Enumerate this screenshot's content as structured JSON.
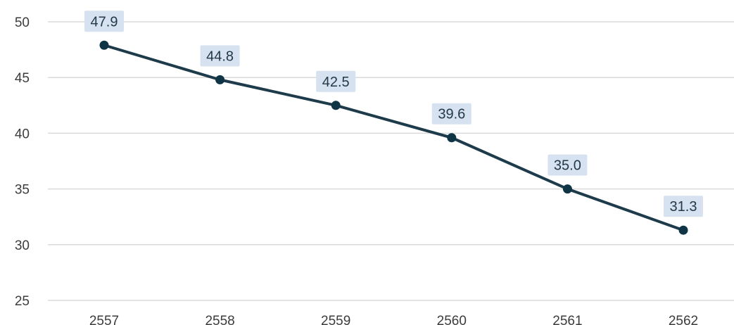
{
  "chart_data": {
    "type": "line",
    "categories": [
      "2557",
      "2558",
      "2559",
      "2560",
      "2561",
      "2562"
    ],
    "values": [
      47.9,
      44.8,
      42.5,
      39.6,
      35.0,
      31.3
    ],
    "data_labels": [
      "47.9",
      "44.8",
      "42.5",
      "39.6",
      "35.0",
      "31.3"
    ],
    "y_ticks": [
      "50",
      "45",
      "40",
      "35",
      "30",
      "25"
    ],
    "ylim": [
      25,
      50
    ],
    "grid": true,
    "legend": "none",
    "colors": {
      "line": "#1d3b4a",
      "marker": "#0f3446",
      "label_bg": "#d6e2f0",
      "grid": "#dadada"
    }
  }
}
